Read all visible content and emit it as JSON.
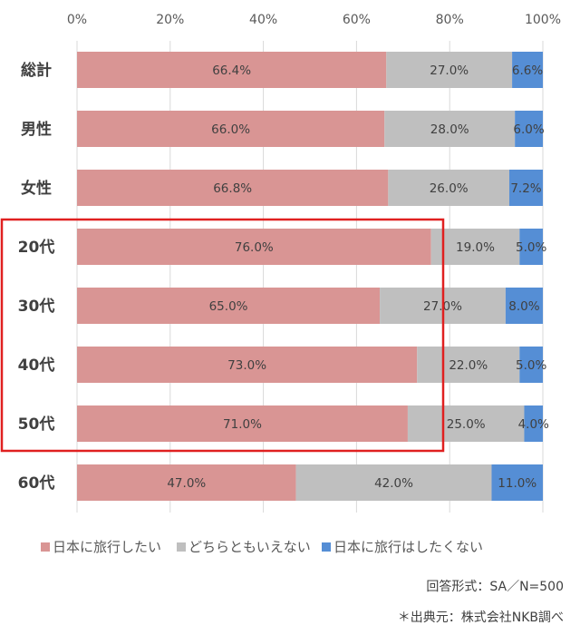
{
  "chart_data": {
    "type": "bar",
    "orientation": "horizontal",
    "stacked": "percent",
    "categories": [
      "総計",
      "男性",
      "女性",
      "20代",
      "30代",
      "40代",
      "50代",
      "60代"
    ],
    "series": [
      {
        "name": "日本に旅行したい",
        "color": "#d99594",
        "values": [
          66.4,
          66.0,
          66.8,
          76.0,
          65.0,
          73.0,
          71.0,
          47.0
        ]
      },
      {
        "name": "どちらともいえない",
        "color": "#bfbfbf",
        "values": [
          27.0,
          28.0,
          26.0,
          19.0,
          27.0,
          22.0,
          25.0,
          42.0
        ]
      },
      {
        "name": "日本に旅行はしたくない",
        "color": "#558ed5",
        "values": [
          6.6,
          6.0,
          7.2,
          5.0,
          8.0,
          5.0,
          4.0,
          11.0
        ]
      }
    ],
    "xlim": [
      0,
      100
    ],
    "xticks": [
      "0%",
      "20%",
      "40%",
      "60%",
      "80%",
      "100%"
    ],
    "xaxis_position": "top",
    "grid": true,
    "legend_position": "bottom",
    "highlight": {
      "categories": [
        "20代",
        "30代",
        "40代",
        "50代"
      ],
      "color": "#e02020"
    },
    "notes": [
      "回答形式：SA／N=500",
      "＊出典元：株式会社NKB調べ"
    ]
  }
}
